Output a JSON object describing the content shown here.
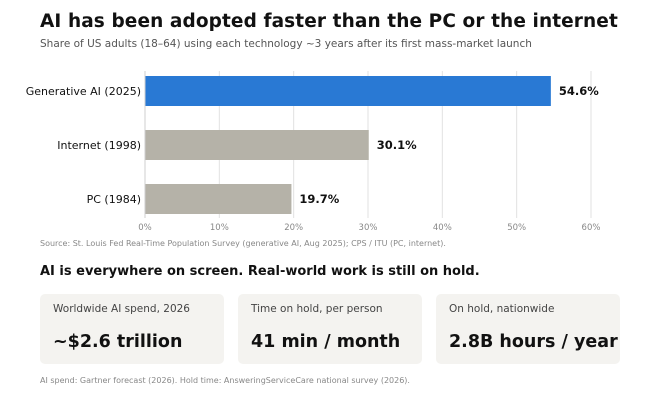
{
  "chart_data": {
    "type": "bar",
    "orientation": "horizontal",
    "title": "AI has been adopted faster than the PC or the internet",
    "subtitle": "Share of US adults (18–64) using each technology ~3 years after its first mass-market launch",
    "categories": [
      "Generative AI (2025)",
      "Internet (1998)",
      "PC (1984)"
    ],
    "values": [
      54.6,
      30.1,
      19.7
    ],
    "value_labels": [
      "54.6%",
      "30.1%",
      "19.7%"
    ],
    "bar_colors": [
      "#2979d4",
      "#b5b2a8",
      "#b5b2a8"
    ],
    "xlim": [
      0,
      60
    ],
    "xticks": [
      0,
      10,
      20,
      30,
      40,
      50,
      60
    ],
    "xtick_labels": [
      "0%",
      "10%",
      "20%",
      "30%",
      "40%",
      "50%",
      "60%"
    ],
    "xlabel": "",
    "ylabel": "",
    "grid": "vertical",
    "legend": "none",
    "source": "Source: St. Louis Fed Real-Time Population Survey (generative AI, Aug 2025); CPS / ITU (PC, internet)."
  },
  "section_heading": "AI is everywhere on screen. Real-world work is still on hold.",
  "cards": [
    {
      "label": "Worldwide AI spend, 2026",
      "value": "~$2.6 trillion"
    },
    {
      "label": "Time on hold, per person",
      "value": "41 min / month"
    },
    {
      "label": "On hold, nationwide",
      "value": "2.8B hours / year"
    }
  ],
  "footnote": "AI spend: Gartner forecast (2026). Hold time: AnsweringServiceCare national survey (2026)."
}
